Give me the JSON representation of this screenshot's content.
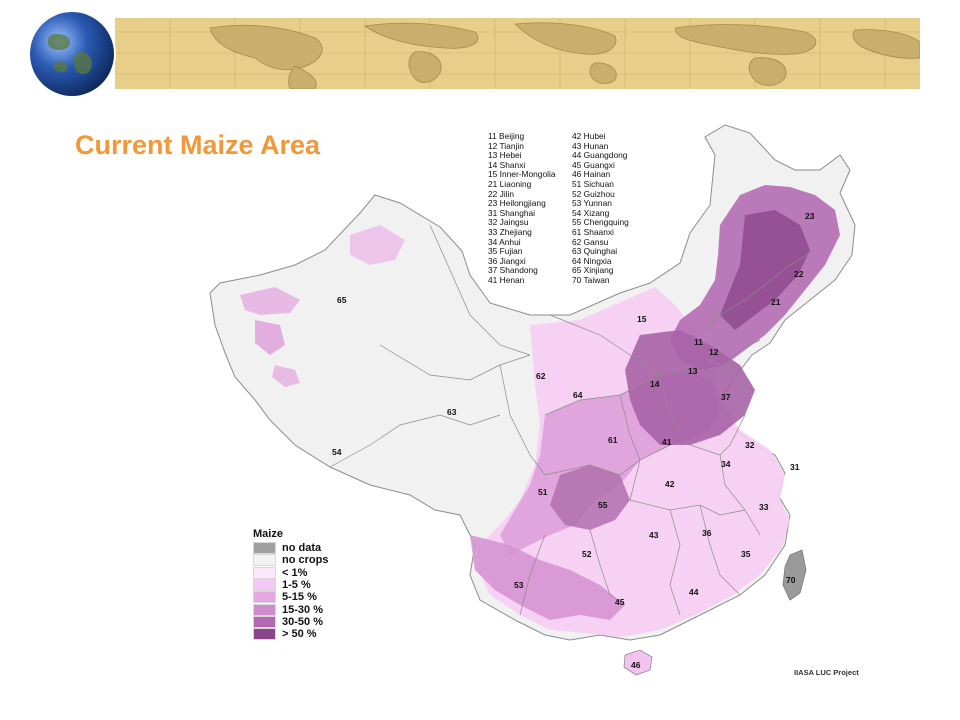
{
  "slide": {
    "title": "Current Maize Area",
    "title_color": "#f0983a",
    "banner_color": "#e7cf8a"
  },
  "map": {
    "source": "IIASA LUC Project",
    "province_labels": [
      "65",
      "15",
      "23",
      "22",
      "21",
      "11",
      "12",
      "62",
      "14",
      "13",
      "64",
      "37",
      "63",
      "61",
      "41",
      "32",
      "54",
      "34",
      "31",
      "51",
      "42",
      "55",
      "33",
      "43",
      "36",
      "52",
      "35",
      "70",
      "53",
      "45",
      "44",
      "46"
    ],
    "province_list_col1": [
      "11 Beijing",
      "12 Tianjin",
      "13 Hebei",
      "14 Shanxi",
      "15 Inner-Mongolia",
      "21 Liaoning",
      "22 Jilin",
      "23 Heilongjiang",
      "31 Shanghai",
      "32 Jaingsu",
      "33 Zhejiang",
      "34 Anhui",
      "35 Fujian",
      "36 Jiangxi",
      "37 Shandong",
      "41 Henan"
    ],
    "province_list_col2": [
      "42 Hubei",
      "43 Hunan",
      "44 Guangdong",
      "45 Guangxi",
      "46 Hainan",
      "51 Sichuan",
      "52 Guizhou",
      "53 Yunnan",
      "54 Xizang",
      "55 Chengquing",
      "61 Shaanxi",
      "62 Gansu",
      "63 Quinghai",
      "64 Ningxia",
      "65 Xinjiang",
      "70 Taiwan"
    ]
  },
  "legend": {
    "title": "Maize",
    "items": [
      {
        "label": "no data",
        "color": "#a0a0a0"
      },
      {
        "label": "no crops",
        "color": "#f2f2f2"
      },
      {
        "label": "< 1%",
        "color": "#fbe9fb"
      },
      {
        "label": "1-5 %",
        "color": "#f6c8f4"
      },
      {
        "label": "5-15 %",
        "color": "#e6a8e2"
      },
      {
        "label": "15-30 %",
        "color": "#d08ccc"
      },
      {
        "label": "30-50 %",
        "color": "#b268b0"
      },
      {
        "label": "> 50 %",
        "color": "#8a4689"
      }
    ]
  }
}
